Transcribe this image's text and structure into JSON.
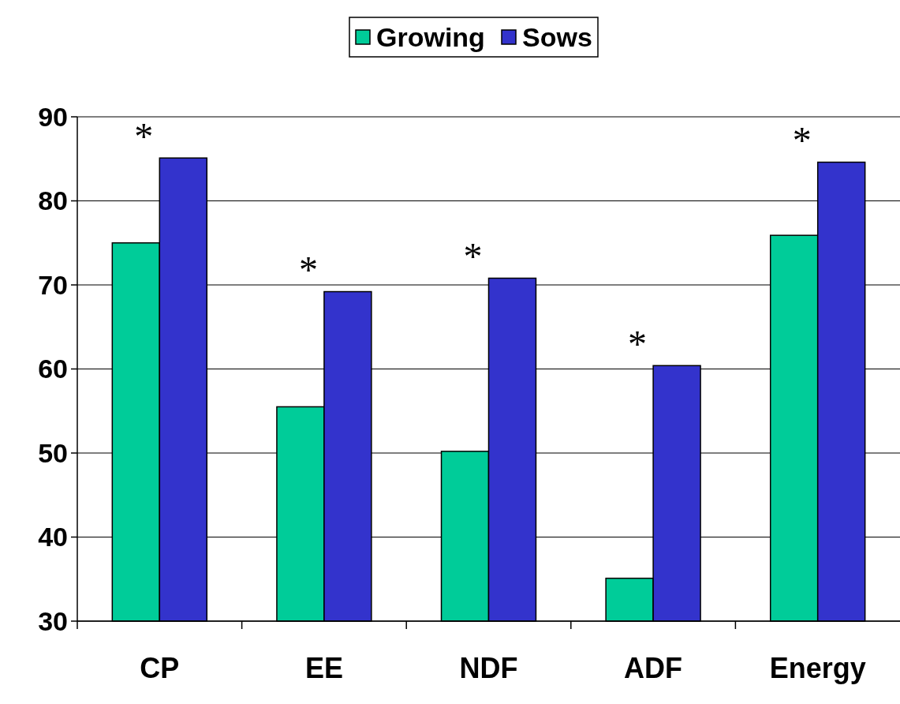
{
  "chart_data": {
    "type": "bar",
    "categories": [
      "CP",
      "EE",
      "NDF",
      "ADF",
      "Energy"
    ],
    "series": [
      {
        "name": "Growing",
        "color": "#00cc99",
        "values": [
          75,
          55.5,
          50.2,
          35.1,
          75.9
        ]
      },
      {
        "name": "Sows",
        "color": "#3333cc",
        "values": [
          85.1,
          69.2,
          70.8,
          60.4,
          84.6
        ]
      }
    ],
    "ylim": [
      30,
      90
    ],
    "yticks": [
      30,
      40,
      50,
      60,
      70,
      80,
      90
    ],
    "grid": "y",
    "legend": "top",
    "annotations": [
      "*",
      "*",
      "*",
      "*",
      "*"
    ]
  }
}
